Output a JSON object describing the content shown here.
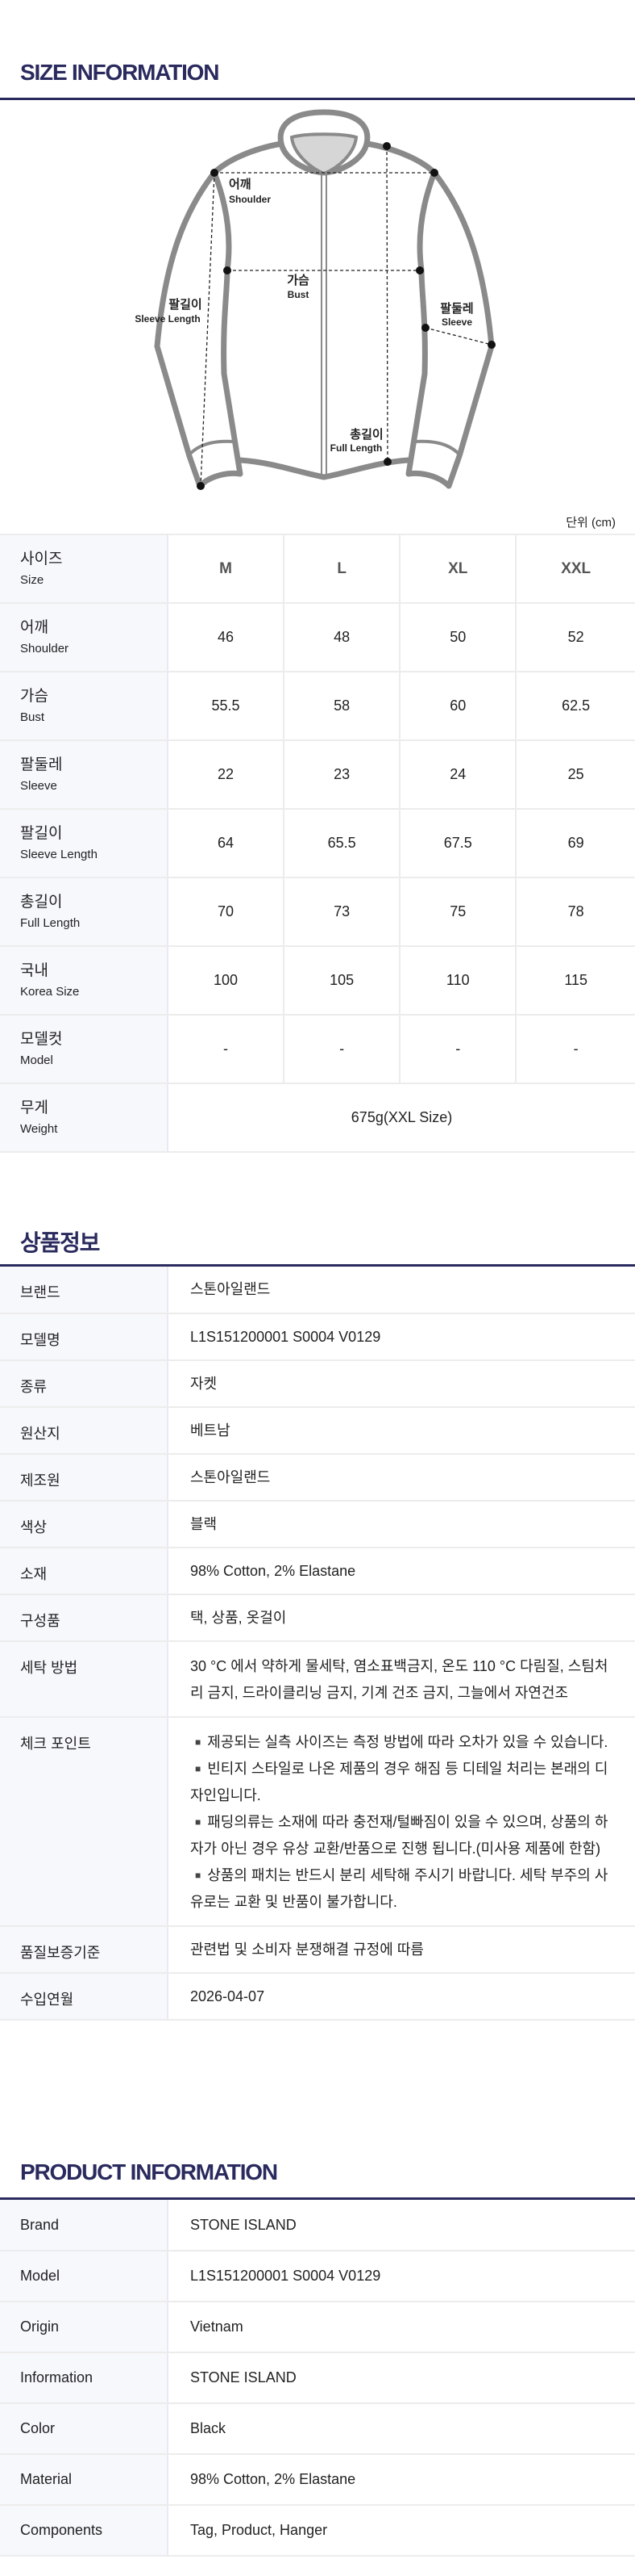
{
  "size_section": {
    "title": "SIZE INFORMATION",
    "unit": "단위 (cm)",
    "diagram_labels": {
      "shoulder_ko": "어깨",
      "shoulder_en": "Shoulder",
      "bust_ko": "가슴",
      "bust_en": "Bust",
      "sleeve_length_ko": "팔길이",
      "sleeve_length_en": "Sleeve Length",
      "sleeve_ko": "팔둘레",
      "sleeve_en": "Sleeve",
      "full_length_ko": "총길이",
      "full_length_en": "Full Length"
    },
    "table": {
      "header": {
        "ko": "사이즈",
        "en": "Size",
        "sizes": [
          "M",
          "L",
          "XL",
          "XXL"
        ]
      },
      "rows": [
        {
          "ko": "어깨",
          "en": "Shoulder",
          "values": [
            "46",
            "48",
            "50",
            "52"
          ]
        },
        {
          "ko": "가슴",
          "en": "Bust",
          "values": [
            "55.5",
            "58",
            "60",
            "62.5"
          ]
        },
        {
          "ko": "팔둘레",
          "en": "Sleeve",
          "values": [
            "22",
            "23",
            "24",
            "25"
          ]
        },
        {
          "ko": "팔길이",
          "en": "Sleeve Length",
          "values": [
            "64",
            "65.5",
            "67.5",
            "69"
          ]
        },
        {
          "ko": "총길이",
          "en": "Full Length",
          "values": [
            "70",
            "73",
            "75",
            "78"
          ]
        },
        {
          "ko": "국내",
          "en": "Korea Size",
          "values": [
            "100",
            "105",
            "110",
            "115"
          ]
        },
        {
          "ko": "모델컷",
          "en": "Model",
          "values": [
            "-",
            "-",
            "-",
            "-"
          ]
        }
      ],
      "weight": {
        "ko": "무게",
        "en": "Weight",
        "value": "675g(XXL Size)"
      }
    }
  },
  "product_info_ko": {
    "title": "상품정보",
    "rows": [
      {
        "label": "브랜드",
        "value": "스톤아일랜드"
      },
      {
        "label": "모델명",
        "value": "L1S151200001 S0004 V0129"
      },
      {
        "label": "종류",
        "value": "자켓"
      },
      {
        "label": "원산지",
        "value": "베트남"
      },
      {
        "label": "제조원",
        "value": "스톤아일랜드"
      },
      {
        "label": "색상",
        "value": "블랙"
      },
      {
        "label": "소재",
        "value": "98% Cotton, 2% Elastane"
      },
      {
        "label": "구성품",
        "value": "택, 상품, 옷걸이"
      },
      {
        "label": "세탁 방법",
        "value": "30 °C 에서 약하게 물세탁, 염소표백금지, 온도 110 °C 다림질, 스팀처리 금지, 드라이클리닝 금지, 기계 건조 금지, 그늘에서 자연건조"
      }
    ],
    "checkpoint": {
      "label": "체크 포인트",
      "items": [
        "제공되는 실측 사이즈는 측정 방법에 따라 오차가 있을 수 있습니다.",
        "빈티지 스타일로 나온 제품의 경우 해짐 등 디테일 처리는 본래의 디자인입니다.",
        "패딩의류는 소재에 따라 충전재/털빠짐이 있을 수 있으며, 상품의 하자가 아닌 경우 유상 교환/반품으로 진행 됩니다.(미사용 제품에 한함)",
        "상품의 패치는 반드시 분리 세탁해 주시기 바랍니다. 세탁 부주의 사유로는 교환 및 반품이 불가합니다."
      ]
    },
    "rows_after": [
      {
        "label": "품질보증기준",
        "value": "관련법 및 소비자 분쟁해결 규정에 따름"
      },
      {
        "label": "수입연월",
        "value": "2026-04-07"
      }
    ]
  },
  "product_info_en": {
    "title": "PRODUCT INFORMATION",
    "rows": [
      {
        "label": "Brand",
        "value": "STONE ISLAND"
      },
      {
        "label": "Model",
        "value": "L1S151200001 S0004 V0129"
      },
      {
        "label": "Origin",
        "value": "Vietnam"
      },
      {
        "label": "Information",
        "value": "STONE ISLAND"
      },
      {
        "label": "Color",
        "value": "Black"
      },
      {
        "label": "Material",
        "value": "98% Cotton, 2% Elastane"
      },
      {
        "label": "Components",
        "value": "Tag, Product, Hanger"
      }
    ]
  },
  "colors": {
    "accent": "#2a2a5e",
    "label_bg": "#f7f8fc",
    "border": "#ececec",
    "outline": "#8a8a8a"
  }
}
